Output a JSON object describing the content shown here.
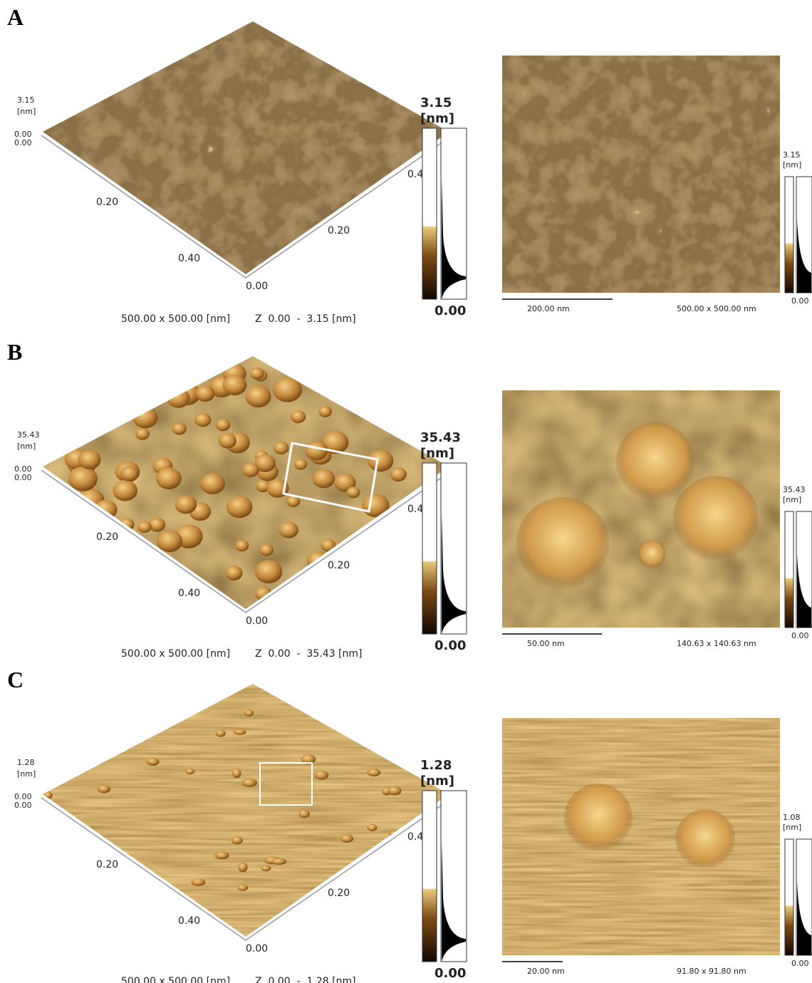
{
  "panels": [
    {
      "label": "A",
      "view3d": {
        "z_max": "3.15",
        "z_unit": "[nm]",
        "z_min_labels": [
          "0.00",
          "0.00"
        ],
        "left_axis_ticks": [
          "0.20",
          "0.40"
        ],
        "right_axis_ticks": [
          "0.20",
          "0.40"
        ],
        "origin": "0.00",
        "colorbar_max": "3.15",
        "colorbar_unit": "[nm]",
        "colorbar_min": "0.00",
        "caption_size": "500.00 x 500.00 [nm]",
        "caption_z": "Z  0.00  -  3.15 [nm]"
      },
      "image2d": {
        "scale_bar": "200.00 nm",
        "size": "500.00 x 500.00 nm",
        "colorbar_max": "3.15",
        "colorbar_unit": "[nm]",
        "colorbar_min": "0.00"
      }
    },
    {
      "label": "B",
      "view3d": {
        "z_max": "35.43",
        "z_unit": "[nm]",
        "z_min_labels": [
          "0.00",
          "0.00"
        ],
        "left_axis_ticks": [
          "0.20",
          "0.40"
        ],
        "right_axis_ticks": [
          "0.20",
          "0.40"
        ],
        "origin": "0.00",
        "colorbar_max": "35.43",
        "colorbar_unit": "[nm]",
        "colorbar_min": "0.00",
        "caption_size": "500.00 x 500.00 [nm]",
        "caption_z": "Z  0.00  -  35.43 [nm]"
      },
      "image2d": {
        "scale_bar": "50.00 nm",
        "size": "140.63 x 140.63 nm",
        "colorbar_max": "35.43",
        "colorbar_unit": "[nm]",
        "colorbar_min": "0.00"
      }
    },
    {
      "label": "C",
      "view3d": {
        "z_max": "1.28",
        "z_unit": "[nm]",
        "z_min_labels": [
          "0.00",
          "0.00"
        ],
        "left_axis_ticks": [
          "0.20",
          "0.40"
        ],
        "right_axis_ticks": [
          "0.20",
          "0.40"
        ],
        "origin": "0.00",
        "colorbar_max": "1.28",
        "colorbar_unit": "[nm]",
        "colorbar_min": "0.00",
        "caption_size": "500.00 x 500.00 [nm]",
        "caption_z": "Z  0.00  -  1.28 [nm]"
      },
      "image2d": {
        "scale_bar": "20.00 nm",
        "size": "91.80 x 91.80 nm",
        "colorbar_max": "1.08",
        "colorbar_unit": "[nm]",
        "colorbar_min": "0.00"
      }
    }
  ]
}
